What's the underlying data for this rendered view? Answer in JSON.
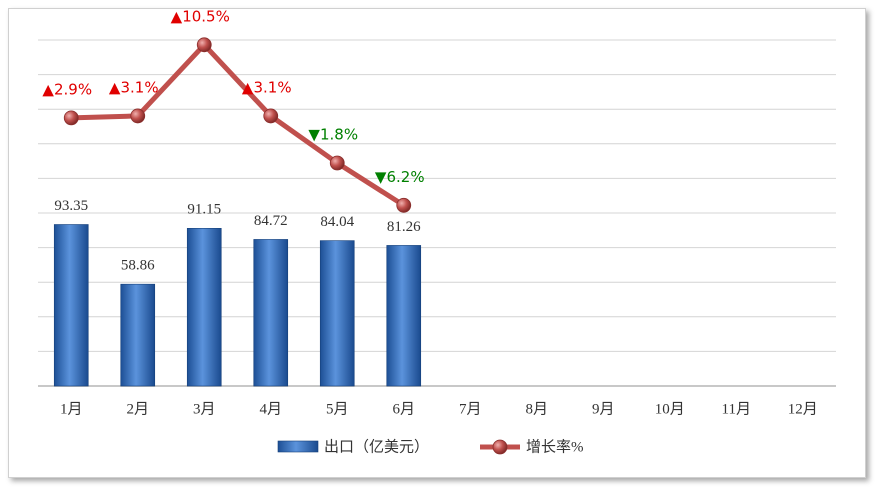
{
  "chart_data": {
    "type": "bar_line",
    "categories": [
      "1月",
      "2月",
      "3月",
      "4月",
      "5月",
      "6月",
      "7月",
      "8月",
      "9月",
      "10月",
      "11月",
      "12月"
    ],
    "series": [
      {
        "name": "出口（亿美元）",
        "type": "bar",
        "color": "#2e67b8",
        "values": [
          93.35,
          58.86,
          91.15,
          84.72,
          84.04,
          81.26,
          null,
          null,
          null,
          null,
          null,
          null
        ]
      },
      {
        "name": "增长率%",
        "type": "line",
        "axis": "y2",
        "color": "#c0504d",
        "values": [
          2.9,
          3.1,
          10.5,
          3.1,
          -1.8,
          -6.2,
          null,
          null,
          null,
          null,
          null,
          null
        ],
        "value_labels": [
          "▲2.9%",
          "▲3.1%",
          "▲10.5%",
          "▲3.1%",
          "▼1.8%",
          "▼6.2%",
          null,
          null,
          null,
          null,
          null,
          null
        ],
        "label_colors": {
          "up": "#e00000",
          "down": "#008000"
        }
      }
    ],
    "ylim": [
      0,
      200
    ],
    "yticks": [
      0,
      20,
      40,
      60,
      80,
      100,
      120,
      140,
      160,
      180,
      200
    ],
    "y2lim": [
      -25,
      11
    ],
    "grid": true,
    "legend": "bottom"
  }
}
